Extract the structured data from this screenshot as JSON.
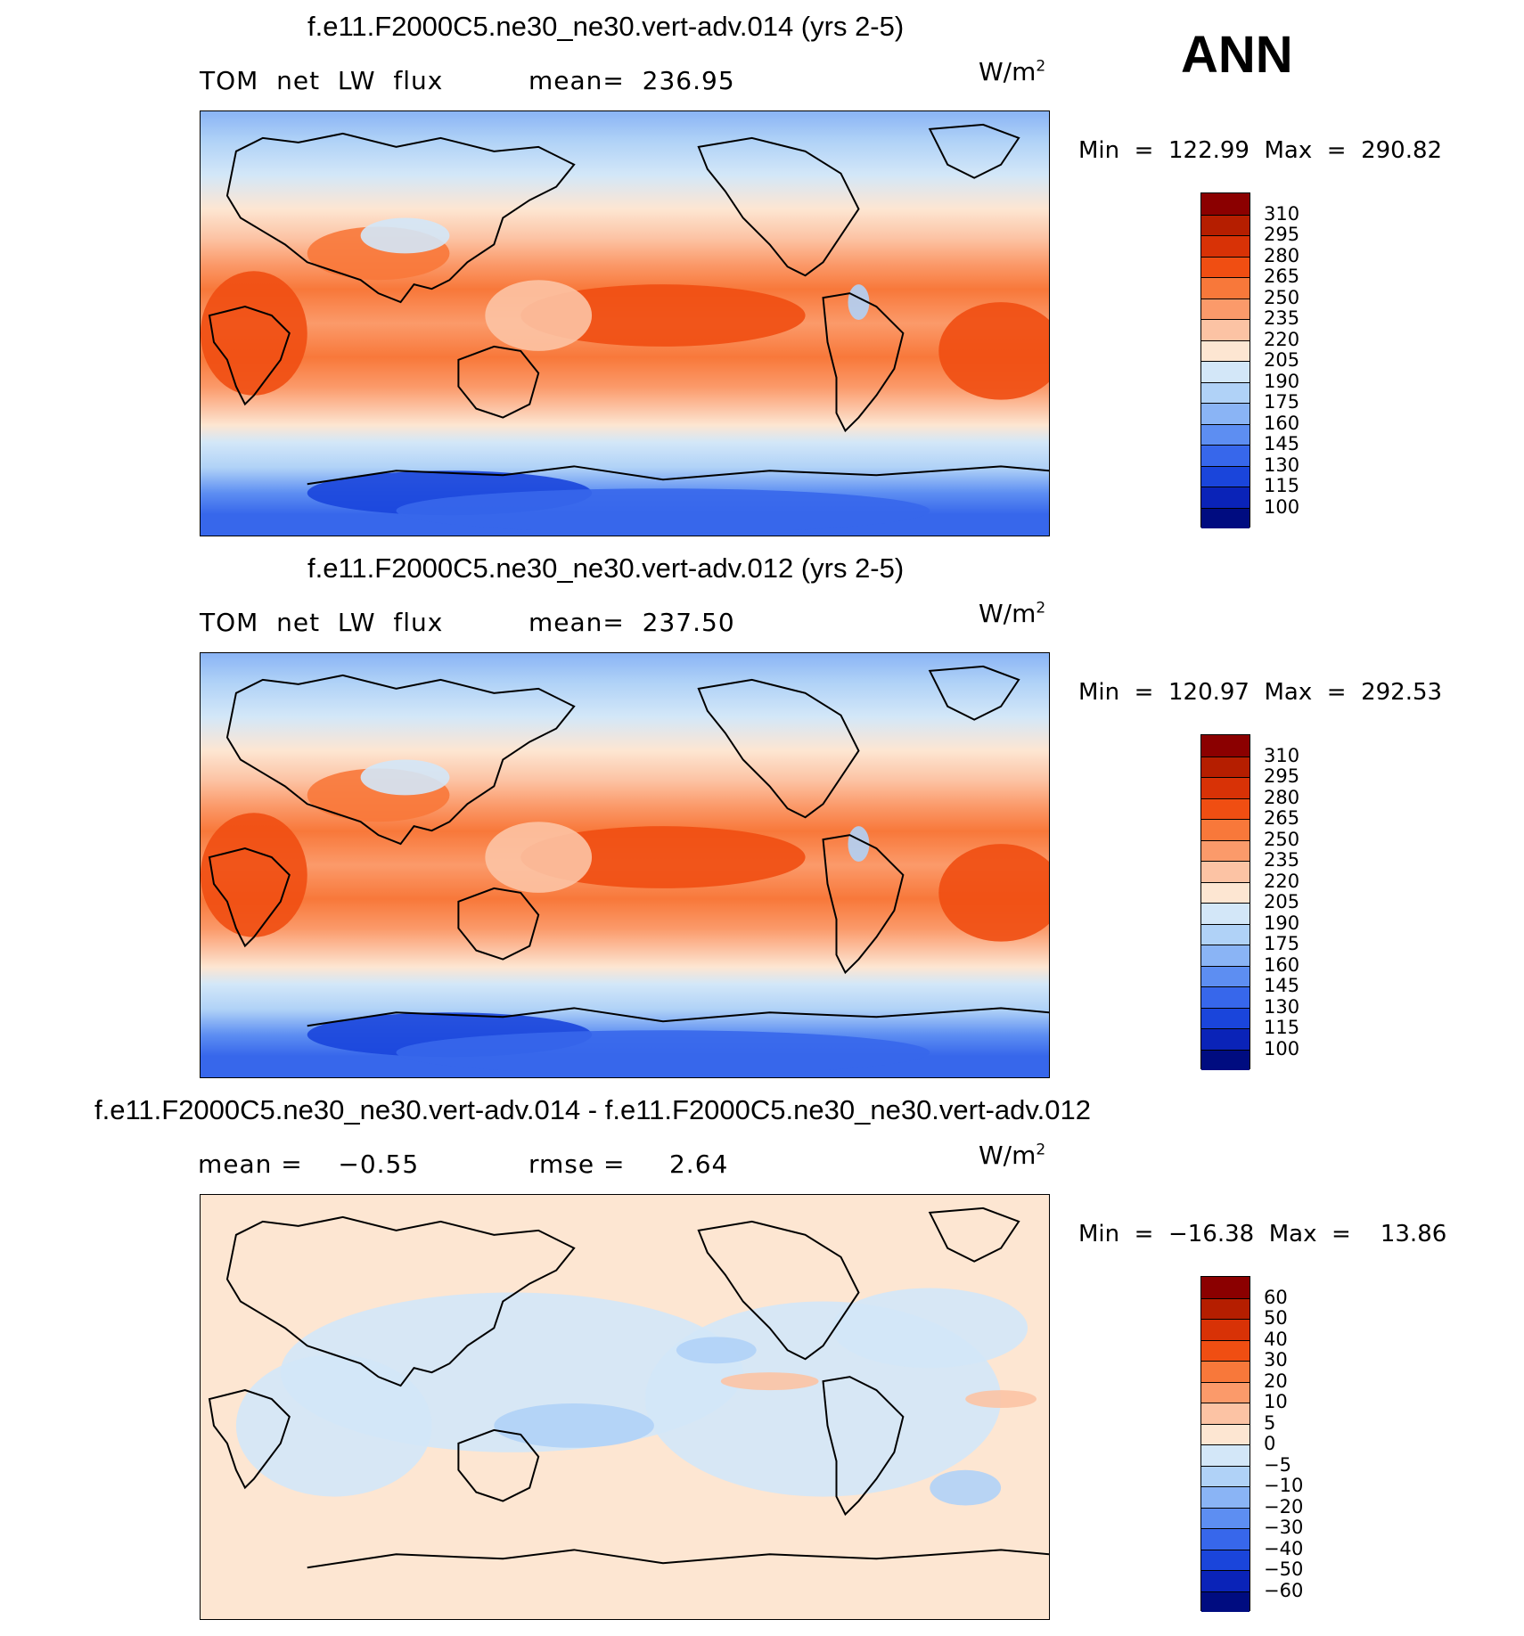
{
  "season": "ANN",
  "panels": [
    {
      "title": "f.e11.F2000C5.ne30_ne30.vert-adv.014 (yrs 2-5)",
      "left_text": "TOM  net  LW  flux",
      "right_text": "mean=  236.95",
      "units": "W/m",
      "units_sup": "2",
      "minmax": "Min  =  122.99  Max  =  290.82",
      "kind": "abs",
      "levels": [
        "310",
        "295",
        "280",
        "265",
        "250",
        "235",
        "220",
        "205",
        "190",
        "175",
        "160",
        "145",
        "130",
        "115",
        "100"
      ],
      "colors": [
        "#8b0000",
        "#b51e00",
        "#d83206",
        "#f04e12",
        "#f8783a",
        "#fb9a6a",
        "#fcc3a4",
        "#fde6d2",
        "#d3e7f8",
        "#b0d2f7",
        "#8ab4f5",
        "#5d8ef2",
        "#3767eb",
        "#1a45db",
        "#0a23b8",
        "#000c80"
      ]
    },
    {
      "title": "f.e11.F2000C5.ne30_ne30.vert-adv.012 (yrs 2-5)",
      "left_text": "TOM  net  LW  flux",
      "right_text": "mean=  237.50",
      "units": "W/m",
      "units_sup": "2",
      "minmax": "Min  =  120.97  Max  =  292.53",
      "kind": "abs",
      "levels": [
        "310",
        "295",
        "280",
        "265",
        "250",
        "235",
        "220",
        "205",
        "190",
        "175",
        "160",
        "145",
        "130",
        "115",
        "100"
      ],
      "colors": [
        "#8b0000",
        "#b51e00",
        "#d83206",
        "#f04e12",
        "#f8783a",
        "#fb9a6a",
        "#fcc3a4",
        "#fde6d2",
        "#d3e7f8",
        "#b0d2f7",
        "#8ab4f5",
        "#5d8ef2",
        "#3767eb",
        "#1a45db",
        "#0a23b8",
        "#000c80"
      ]
    },
    {
      "title": "f.e11.F2000C5.ne30_ne30.vert-adv.014 - f.e11.F2000C5.ne30_ne30.vert-adv.012",
      "left_text": "mean =    −0.55",
      "right_text": "rmse =     2.64",
      "units": "W/m",
      "units_sup": "2",
      "minmax": "Min  =  −16.38  Max  =    13.86",
      "kind": "diff",
      "levels": [
        "60",
        "50",
        "40",
        "30",
        "20",
        "10",
        "5",
        "0",
        "−5",
        "−10",
        "−20",
        "−30",
        "−40",
        "−50",
        "−60"
      ],
      "colors": [
        "#8b0000",
        "#b51e00",
        "#d83206",
        "#f04e12",
        "#f8783a",
        "#fb9a6a",
        "#fcc3a4",
        "#fde6d2",
        "#d3e7f8",
        "#b0d2f7",
        "#8ab4f5",
        "#5d8ef2",
        "#3767eb",
        "#1a45db",
        "#0a23b8",
        "#000c80"
      ]
    }
  ]
}
